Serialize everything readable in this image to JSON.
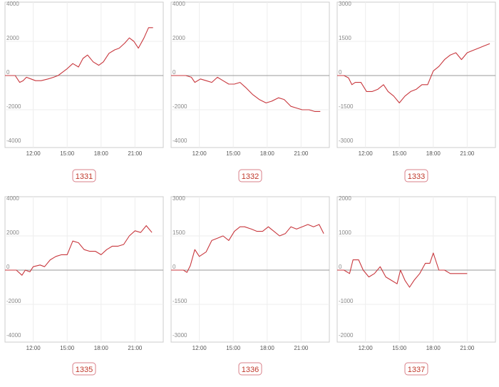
{
  "colors": {
    "line": "#c8373d",
    "frame": "#cccccc",
    "grid": "#eeeeee",
    "zero": "#999999",
    "tick": "#888888",
    "badge_text": "#c0392b",
    "badge_border": "#d9808a"
  },
  "x_ticks": [
    "12:00",
    "15:00",
    "18:00",
    "21:00"
  ],
  "chart_data": [
    {
      "type": "line",
      "label": "1331",
      "ylim": [
        -4000,
        4000
      ],
      "yticks": [
        "4000",
        "2000",
        "0",
        "-2000",
        "-4000"
      ],
      "grid": true,
      "xlim": [
        9.5,
        23.5
      ],
      "x": [
        9.5,
        10.0,
        10.4,
        10.8,
        11.1,
        11.4,
        11.8,
        12.2,
        12.7,
        13.3,
        13.8,
        14.2,
        14.6,
        15.0,
        15.5,
        16.0,
        16.4,
        16.8,
        17.3,
        17.8,
        18.2,
        18.7,
        19.2,
        19.6,
        20.1,
        20.5,
        20.9,
        21.3,
        21.8,
        22.2,
        22.6
      ],
      "y": [
        0,
        0,
        0,
        -400,
        -300,
        -100,
        -200,
        -300,
        -300,
        -200,
        -100,
        0,
        200,
        400,
        700,
        500,
        1000,
        1200,
        800,
        600,
        800,
        1300,
        1500,
        1600,
        1900,
        2200,
        2000,
        1600,
        2200,
        2800,
        2800
      ]
    },
    {
      "type": "line",
      "label": "1332",
      "ylim": [
        -4000,
        4000
      ],
      "yticks": [
        "4000",
        "2000",
        "0",
        "-2000",
        "-4000"
      ],
      "grid": true,
      "xlim": [
        9.5,
        23.5
      ],
      "x": [
        9.5,
        10.2,
        10.8,
        11.3,
        11.6,
        12.1,
        12.6,
        13.1,
        13.6,
        14.1,
        14.6,
        15.1,
        15.6,
        16.1,
        16.7,
        17.3,
        17.9,
        18.4,
        19.0,
        19.5,
        20.1,
        20.6,
        21.1,
        21.7,
        22.2,
        22.7
      ],
      "y": [
        0,
        0,
        0,
        -100,
        -400,
        -200,
        -300,
        -400,
        -100,
        -300,
        -500,
        -500,
        -400,
        -700,
        -1100,
        -1400,
        -1600,
        -1500,
        -1300,
        -1400,
        -1800,
        -1900,
        -2000,
        -2000,
        -2100,
        -2100
      ]
    },
    {
      "type": "line",
      "label": "1333",
      "ylim": [
        -3000,
        3000
      ],
      "yticks": [
        "3000",
        "1500",
        "0",
        "-1500",
        "-3000"
      ],
      "grid": true,
      "xlim": [
        9.5,
        23.5
      ],
      "x": [
        9.5,
        10.1,
        10.5,
        10.8,
        11.1,
        11.6,
        12.1,
        12.6,
        13.1,
        13.6,
        14.0,
        14.5,
        15.0,
        15.5,
        16.0,
        16.5,
        17.0,
        17.5,
        18.0,
        18.5,
        19.0,
        19.5,
        20.0,
        20.5,
        21.0,
        21.5,
        22.0,
        22.5,
        23.0
      ],
      "y": [
        0,
        0,
        -100,
        -400,
        -300,
        -300,
        -700,
        -700,
        -600,
        -400,
        -700,
        -900,
        -1200,
        -900,
        -700,
        -600,
        -400,
        -400,
        200,
        400,
        700,
        900,
        1000,
        700,
        1000,
        1100,
        1200,
        1300,
        1400
      ]
    },
    {
      "type": "line",
      "label": "1335",
      "ylim": [
        -4000,
        4000
      ],
      "yticks": [
        "4000",
        "2000",
        "0",
        "-2000",
        "-4000"
      ],
      "grid": true,
      "xlim": [
        9.5,
        23.5
      ],
      "x": [
        9.5,
        10.0,
        10.5,
        11.0,
        11.3,
        11.7,
        12.0,
        12.6,
        13.0,
        13.5,
        14.0,
        14.5,
        15.0,
        15.5,
        16.0,
        16.5,
        17.0,
        17.5,
        18.0,
        18.5,
        19.0,
        19.5,
        20.0,
        20.5,
        21.0,
        21.5,
        22.0,
        22.5
      ],
      "y": [
        0,
        0,
        0,
        -300,
        0,
        -100,
        200,
        300,
        200,
        600,
        800,
        900,
        900,
        1700,
        1600,
        1200,
        1100,
        1100,
        900,
        1200,
        1400,
        1400,
        1500,
        2000,
        2300,
        2200,
        2600,
        2200
      ]
    },
    {
      "type": "line",
      "label": "1336",
      "ylim": [
        -3000,
        3000
      ],
      "yticks": [
        "3000",
        "1500",
        "0",
        "-1500",
        "-3000"
      ],
      "grid": true,
      "xlim": [
        9.5,
        23.5
      ],
      "x": [
        9.5,
        10.1,
        10.6,
        10.9,
        11.2,
        11.6,
        12.0,
        12.6,
        13.1,
        13.6,
        14.1,
        14.6,
        15.1,
        15.6,
        16.0,
        16.6,
        17.1,
        17.6,
        18.1,
        18.6,
        19.1,
        19.6,
        20.1,
        20.6,
        21.1,
        21.6,
        22.1,
        22.6,
        23.0
      ],
      "y": [
        0,
        0,
        0,
        -100,
        200,
        900,
        600,
        800,
        1300,
        1400,
        1500,
        1300,
        1700,
        1900,
        1900,
        1800,
        1700,
        1700,
        1900,
        1700,
        1500,
        1600,
        1900,
        1800,
        1900,
        2000,
        1900,
        2000,
        1600
      ]
    },
    {
      "type": "line",
      "label": "1337",
      "ylim": [
        -2000,
        2000
      ],
      "yticks": [
        "2000",
        "1000",
        "0",
        "-1000",
        "-2000"
      ],
      "grid": true,
      "xlim": [
        9.5,
        23.5
      ],
      "x": [
        9.5,
        10.1,
        10.6,
        10.9,
        11.4,
        11.8,
        12.3,
        12.8,
        13.3,
        13.8,
        14.3,
        14.8,
        15.1,
        15.5,
        15.9,
        16.3,
        16.8,
        17.3,
        17.7,
        18.0,
        18.5,
        19.0,
        19.5,
        20.0,
        20.5,
        21.0
      ],
      "y": [
        0,
        0,
        -100,
        300,
        300,
        0,
        -200,
        -100,
        100,
        -200,
        -300,
        -400,
        0,
        -300,
        -500,
        -300,
        -100,
        200,
        200,
        500,
        0,
        0,
        -100,
        -100,
        -100,
        -100
      ]
    }
  ]
}
